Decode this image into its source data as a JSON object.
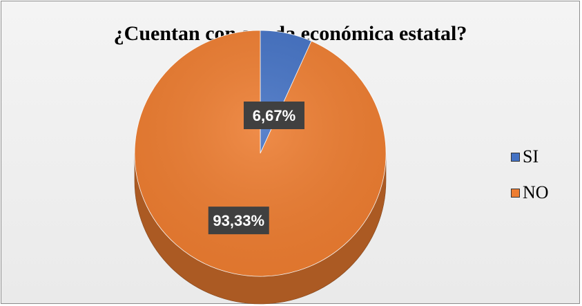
{
  "chart_data": {
    "type": "pie",
    "title": "¿Cuentan con ayuda económica estatal?",
    "categories": [
      "SI",
      "NO"
    ],
    "values": [
      6.67,
      93.33
    ],
    "data_labels": [
      "6,67%",
      "93,33%"
    ],
    "colors": [
      "#4472c4",
      "#ed7d31"
    ],
    "legend_placement": "right",
    "style": "3d"
  }
}
